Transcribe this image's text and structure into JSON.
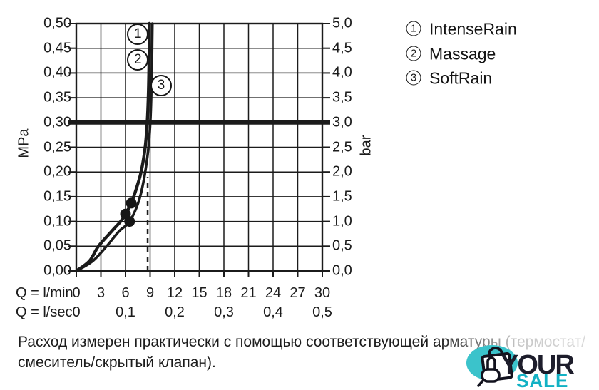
{
  "chart_data": {
    "type": "line",
    "title": "",
    "ylabel_left": "MPa",
    "ylabel_right": "bar",
    "xlabel_row1": "Q = l/min",
    "xlabel_row2": "Q = l/sec",
    "xlim_lmin": [
      0,
      30
    ],
    "ylim_mpa": [
      0,
      0.5
    ],
    "ylim_bar": [
      0,
      5
    ],
    "grid": true,
    "x_ticks_lmin": [
      "0",
      "3",
      "6",
      "9",
      "12",
      "15",
      "18",
      "21",
      "24",
      "27",
      "30"
    ],
    "x_ticks_lsec": [
      {
        "flow": 0,
        "label": "0"
      },
      {
        "flow": 6,
        "label": "0,1"
      },
      {
        "flow": 12,
        "label": "0,2"
      },
      {
        "flow": 18,
        "label": "0,3"
      },
      {
        "flow": 24,
        "label": "0,4"
      },
      {
        "flow": 30,
        "label": "0,5"
      }
    ],
    "y_ticks_mpa": [
      "0,50",
      "0,45",
      "0,40",
      "0,35",
      "0,30",
      "0,25",
      "0,20",
      "0,15",
      "0,10",
      "0,05",
      "0,00"
    ],
    "y_ticks_bar": [
      "5,0",
      "4,5",
      "4,0",
      "3,5",
      "3,0",
      "2,5",
      "2,0",
      "1,5",
      "1,0",
      "0,5",
      "0,0"
    ],
    "reference_line_mpa": 0.3,
    "dashed_guide_lmin": 8.7,
    "dashed_guide_top_mpa": 0.19,
    "series": [
      {
        "name": "IntenseRain / Massage",
        "points_flow_pressure": [
          [
            0,
            0
          ],
          [
            1.6,
            0.02
          ],
          [
            2.7,
            0.05
          ],
          [
            4.3,
            0.08
          ],
          [
            5.4,
            0.1
          ],
          [
            6.0,
            0.115
          ],
          [
            6.7,
            0.137
          ],
          [
            7.2,
            0.16
          ],
          [
            7.9,
            0.2
          ],
          [
            8.4,
            0.25
          ],
          [
            8.65,
            0.3
          ],
          [
            8.78,
            0.35
          ],
          [
            8.85,
            0.4
          ],
          [
            8.9,
            0.45
          ],
          [
            8.92,
            0.5
          ]
        ],
        "stroke_width": 4.4
      },
      {
        "name": "SoftRain",
        "points_flow_pressure": [
          [
            0,
            0
          ],
          [
            2.0,
            0.02
          ],
          [
            3.7,
            0.05
          ],
          [
            5.2,
            0.08
          ],
          [
            6.5,
            0.1
          ],
          [
            7.6,
            0.14
          ],
          [
            8.3,
            0.19
          ],
          [
            8.8,
            0.25
          ],
          [
            9.05,
            0.31
          ],
          [
            9.2,
            0.4
          ],
          [
            9.28,
            0.5
          ]
        ],
        "stroke_width": 3.6
      }
    ],
    "markers_flow_pressure": [
      [
        6.0,
        0.115
      ],
      [
        6.7,
        0.137
      ],
      [
        6.5,
        0.1
      ]
    ],
    "curve_labels": [
      {
        "num": "1",
        "flow": 7.5,
        "pressure": 0.479
      },
      {
        "num": "2",
        "flow": 7.5,
        "pressure": 0.427
      },
      {
        "num": "3",
        "flow": 10.35,
        "pressure": 0.375
      }
    ]
  },
  "legend": {
    "items": [
      {
        "num": "1",
        "label": "IntenseRain"
      },
      {
        "num": "2",
        "label": "Massage"
      },
      {
        "num": "3",
        "label": "SoftRain"
      }
    ]
  },
  "footnote": {
    "line1": "Расход измерен практически с помощью соответствующей арматуры (термостат/",
    "line2": "смеситель/скрытый клапан)."
  },
  "logo": {
    "word1": "YOUR",
    "word2": "SALE",
    "teal": "#3bc3cb",
    "sale_teal": "#12b1c4",
    "dark": "#1d1d2b"
  },
  "colors": {
    "ink": "#1b1b1b"
  }
}
